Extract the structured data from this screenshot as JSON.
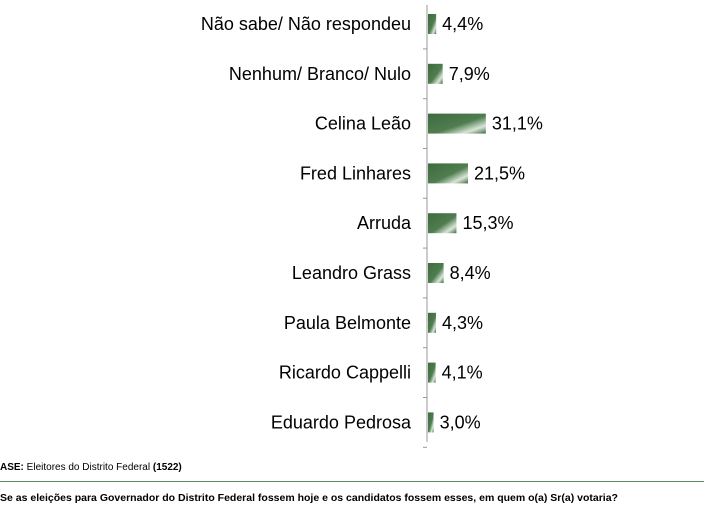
{
  "chart_data": {
    "type": "bar",
    "orientation": "horizontal",
    "categories": [
      "Não sabe/ Não respondeu",
      "Nenhum/ Branco/ Nulo",
      "Celina Leão",
      "Fred Linhares",
      "Arruda",
      "Leandro Grass",
      "Paula Belmonte",
      "Ricardo Cappelli",
      "Eduardo Pedrosa"
    ],
    "values": [
      4.4,
      7.9,
      31.1,
      21.5,
      15.3,
      8.4,
      4.3,
      4.1,
      3.0
    ],
    "value_labels": [
      "4,4%",
      "7,9%",
      "31,1%",
      "21,5%",
      "15,3%",
      "8,4%",
      "4,3%",
      "4,1%",
      "3,0%"
    ],
    "bar_color": "#3d6b3d",
    "bar_highlight": "#ffffff",
    "axis_color": "#999999",
    "title": "",
    "xlabel": "",
    "ylabel": ""
  },
  "footer": {
    "base_label": "ASE:",
    "base_text": " Eleitores do Distrito Federal ",
    "base_count": "(1522)",
    "question": "Se as eleições para Governador do Distrito Federal fossem hoje e os candidatos fossem esses, em quem o(a) Sr(a) votaria?"
  }
}
